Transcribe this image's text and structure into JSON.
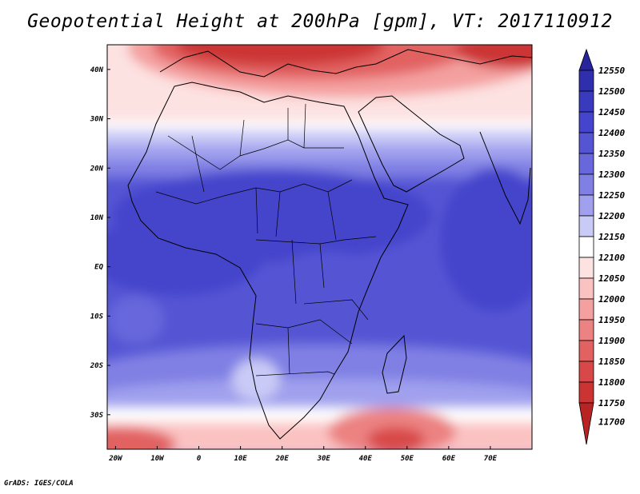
{
  "title": "Geopotential Height at 200hPa [gpm], VT: 2017110912",
  "credit": "GrADS: IGES/COLA",
  "map": {
    "lon_range": [
      -22,
      80
    ],
    "lat_range": [
      -37,
      45
    ],
    "lat_ticks": [
      {
        "value": 40,
        "label": "40N"
      },
      {
        "value": 30,
        "label": "30N"
      },
      {
        "value": 20,
        "label": "20N"
      },
      {
        "value": 10,
        "label": "10N"
      },
      {
        "value": 0,
        "label": "EQ"
      },
      {
        "value": -10,
        "label": "10S"
      },
      {
        "value": -20,
        "label": "20S"
      },
      {
        "value": -30,
        "label": "30S"
      }
    ],
    "lon_ticks": [
      {
        "value": -20,
        "label": "20W"
      },
      {
        "value": -10,
        "label": "10W"
      },
      {
        "value": 0,
        "label": "0"
      },
      {
        "value": 10,
        "label": "10E"
      },
      {
        "value": 20,
        "label": "20E"
      },
      {
        "value": 30,
        "label": "30E"
      },
      {
        "value": 40,
        "label": "40E"
      },
      {
        "value": 50,
        "label": "50E"
      },
      {
        "value": 60,
        "label": "60E"
      },
      {
        "value": 70,
        "label": "70E"
      }
    ]
  },
  "colorbar": {
    "levels": [
      {
        "label": "12550",
        "color": "#28249c"
      },
      {
        "label": "12500",
        "color": "#2f2fad"
      },
      {
        "label": "12450",
        "color": "#3a3abf"
      },
      {
        "label": "12400",
        "color": "#4444cc"
      },
      {
        "label": "12350",
        "color": "#5555d4"
      },
      {
        "label": "12300",
        "color": "#6868dc"
      },
      {
        "label": "12250",
        "color": "#8080e4"
      },
      {
        "label": "12200",
        "color": "#a0a0ee"
      },
      {
        "label": "12150",
        "color": "#cacaf6"
      },
      {
        "label": "12100",
        "color": "#ffffff"
      },
      {
        "label": "12050",
        "color": "#fde2e2"
      },
      {
        "label": "12000",
        "color": "#fbc2c2"
      },
      {
        "label": "11950",
        "color": "#f4a0a0"
      },
      {
        "label": "11900",
        "color": "#ec8282"
      },
      {
        "label": "11850",
        "color": "#e26262"
      },
      {
        "label": "11800",
        "color": "#d84848"
      },
      {
        "label": "11750",
        "color": "#cc3434"
      },
      {
        "label": "11700",
        "color": "#b82424"
      }
    ]
  }
}
